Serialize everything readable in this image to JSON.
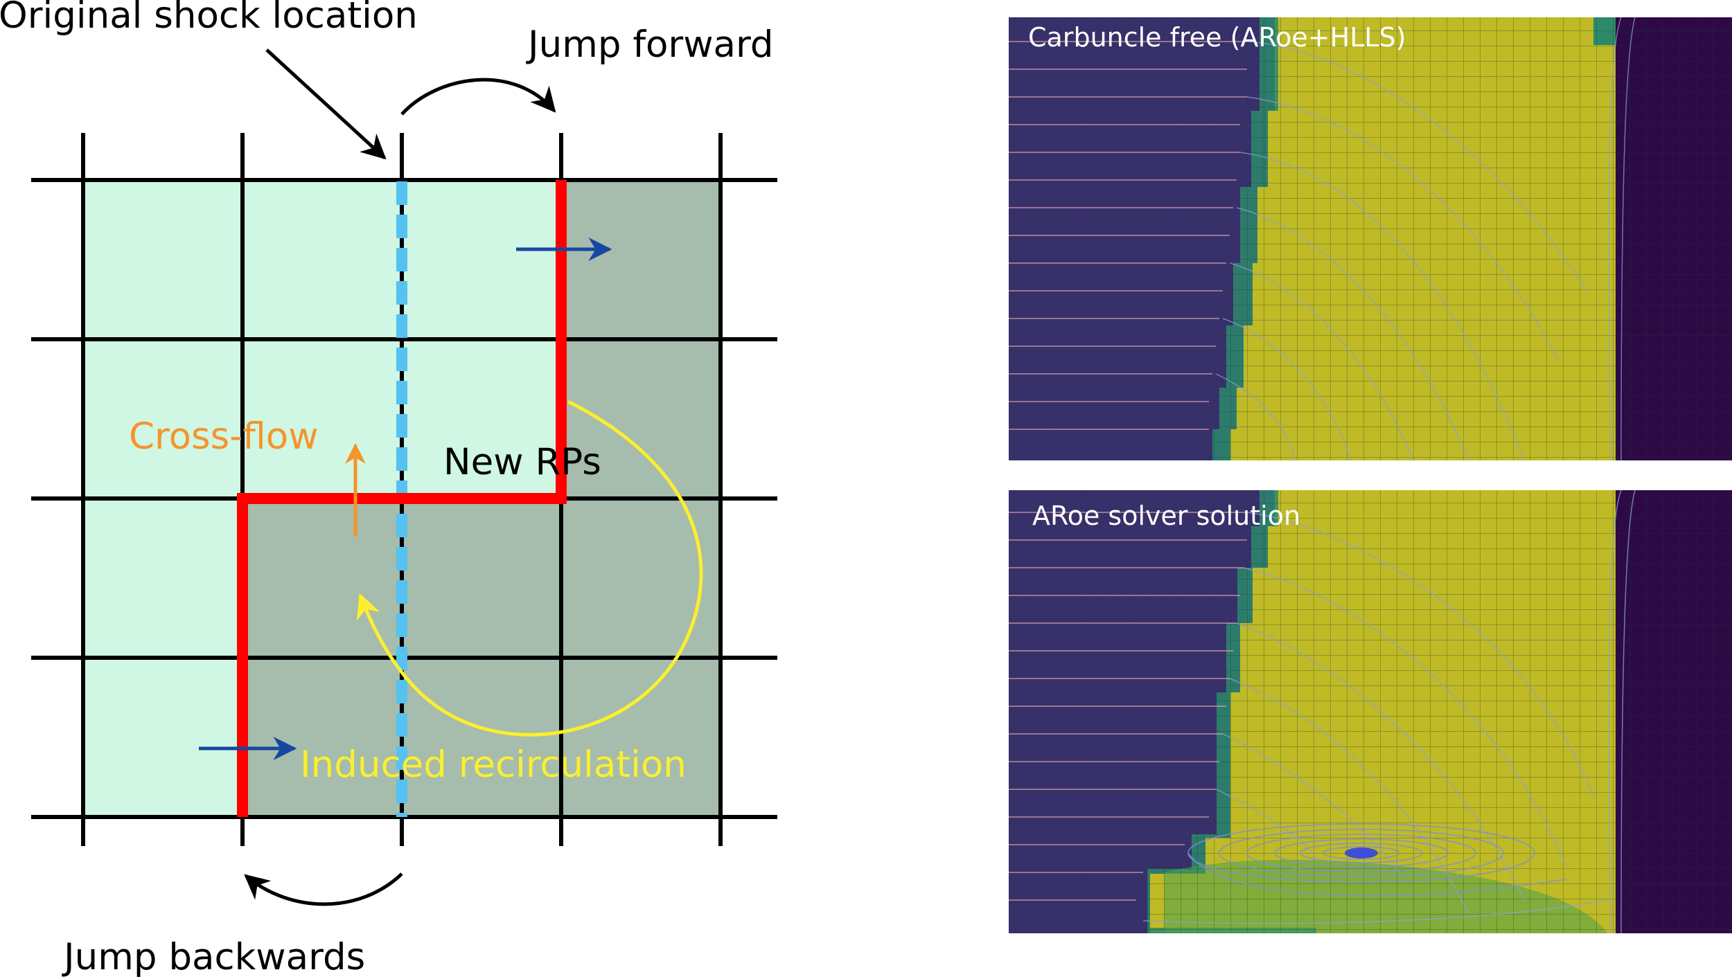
{
  "schematic": {
    "label_original": "Original shock location",
    "label_jump_forward": "Jump forward",
    "label_cross_flow": "Cross-flow",
    "label_new_rps": "New RPs",
    "label_induced": "Induced recirculation",
    "label_jump_backwards": "Jump backwards",
    "colors": {
      "upstream_cell": "#cff7e3",
      "downstream_cell": "#a6bcad",
      "grid": "#000000",
      "shock_front": "#ff0000",
      "original_shock": "#55c2f2",
      "flow_arrow": "#1747a0",
      "cross_flow": "#f5942b",
      "recirculation": "#fbef2e"
    }
  },
  "panels": {
    "top_title": "Carbuncle free (ARoe+HLLS)",
    "bottom_title": "ARoe solver solution",
    "colors": {
      "upstream": "#37306b",
      "shock_layer": "#bfba26",
      "transition": "#2c8a6b",
      "downstream": "#2d0a45",
      "vortex_core": "#3d4fd6"
    }
  }
}
